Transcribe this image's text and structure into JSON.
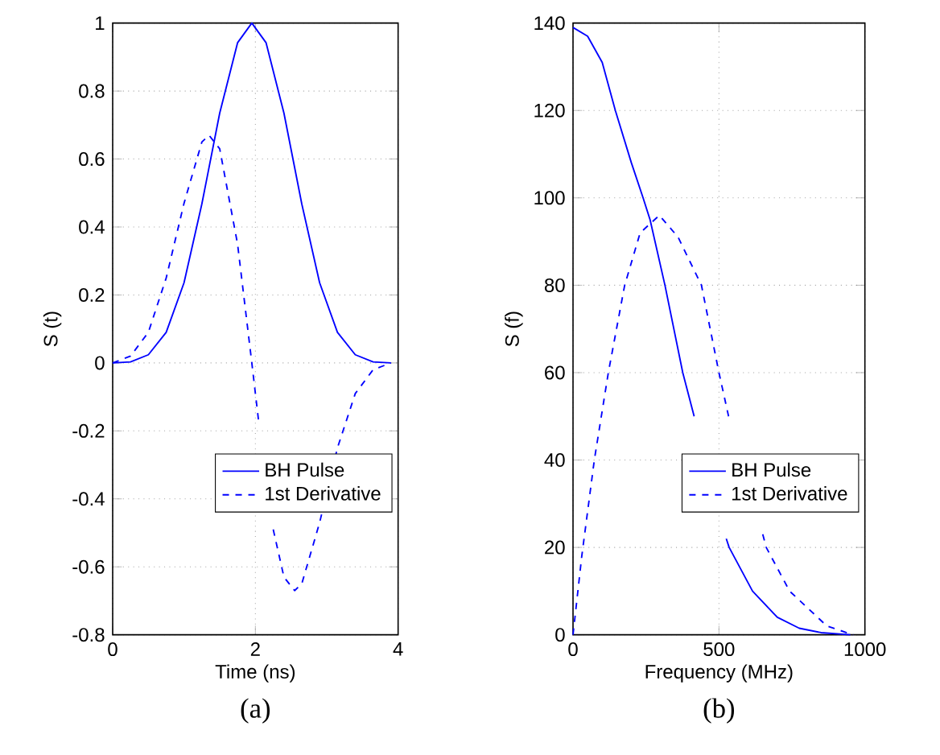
{
  "chart_data": [
    {
      "type": "line",
      "xlabel": "Time (ns)",
      "ylabel": "S (t)",
      "annotations": [
        "(a)"
      ],
      "xlim": [
        0,
        4
      ],
      "ylim": [
        -0.8,
        1
      ],
      "xticks": [
        0,
        2,
        4
      ],
      "yticks": [
        -0.8,
        -0.6,
        -0.4,
        -0.2,
        0,
        0.2,
        0.4,
        0.6,
        0.8,
        1
      ],
      "grid": true,
      "legend": "bottom right",
      "marker": "none",
      "series": [
        {
          "name": "BH Pulse",
          "color": "#0000ff",
          "line_style": "solid",
          "x": [
            0,
            0.25,
            0.5,
            0.75,
            1.0,
            1.25,
            1.5,
            1.75,
            1.95,
            2.15,
            2.4,
            2.65,
            2.9,
            3.15,
            3.4,
            3.65,
            3.9
          ],
          "values": [
            0,
            0.003,
            0.024,
            0.09,
            0.236,
            0.468,
            0.735,
            0.942,
            1.0,
            0.942,
            0.735,
            0.468,
            0.236,
            0.09,
            0.024,
            0.003,
            0
          ]
        },
        {
          "name": "1st Derivative",
          "color": "#0000ff",
          "line_style": "dashed",
          "x": [
            0,
            0.25,
            0.5,
            0.75,
            1.0,
            1.25,
            1.35,
            1.5,
            1.75,
            1.95,
            2.05,
            2.15,
            2.25,
            2.4,
            2.55,
            2.65,
            2.9,
            3.15,
            3.4,
            3.65,
            3.9
          ],
          "values": [
            0,
            0.02,
            0.09,
            0.25,
            0.47,
            0.65,
            0.67,
            0.63,
            0.35,
            0,
            -0.18,
            null,
            -0.49,
            -0.63,
            -0.67,
            -0.65,
            -0.47,
            -0.25,
            -0.09,
            -0.02,
            0
          ]
        }
      ]
    },
    {
      "type": "line",
      "xlabel": "Frequency (MHz)",
      "ylabel": "S (f)",
      "annotations": [
        "(b)"
      ],
      "xlim": [
        0,
        1000
      ],
      "ylim": [
        0,
        140
      ],
      "xticks": [
        0,
        500,
        1000
      ],
      "yticks": [
        0,
        20,
        40,
        60,
        80,
        100,
        120,
        140
      ],
      "grid": true,
      "legend": "bottom right",
      "marker": "none",
      "series": [
        {
          "name": "BH Pulse",
          "color": "#0000ff",
          "line_style": "solid",
          "x": [
            0,
            50,
            100,
            145,
            200,
            240,
            264,
            315,
            376,
            415,
            455,
            525,
            535,
            615,
            700,
            775,
            850,
            950
          ],
          "values": [
            139,
            137,
            131,
            120,
            108,
            100,
            95,
            80,
            60,
            50,
            null,
            22,
            20,
            10,
            4,
            1.5,
            0.5,
            0
          ]
        },
        {
          "name": "1st Derivative",
          "color": "#0000ff",
          "line_style": "dashed",
          "x": [
            0,
            30,
            73,
            121,
            177,
            230,
            296,
            360,
            440,
            500,
            533,
            567,
            650,
            662,
            742,
            870,
            960
          ],
          "values": [
            0,
            18,
            40,
            60,
            80,
            92,
            96,
            91,
            80,
            60,
            50,
            null,
            23,
            20,
            10,
            2,
            0
          ]
        }
      ]
    }
  ]
}
